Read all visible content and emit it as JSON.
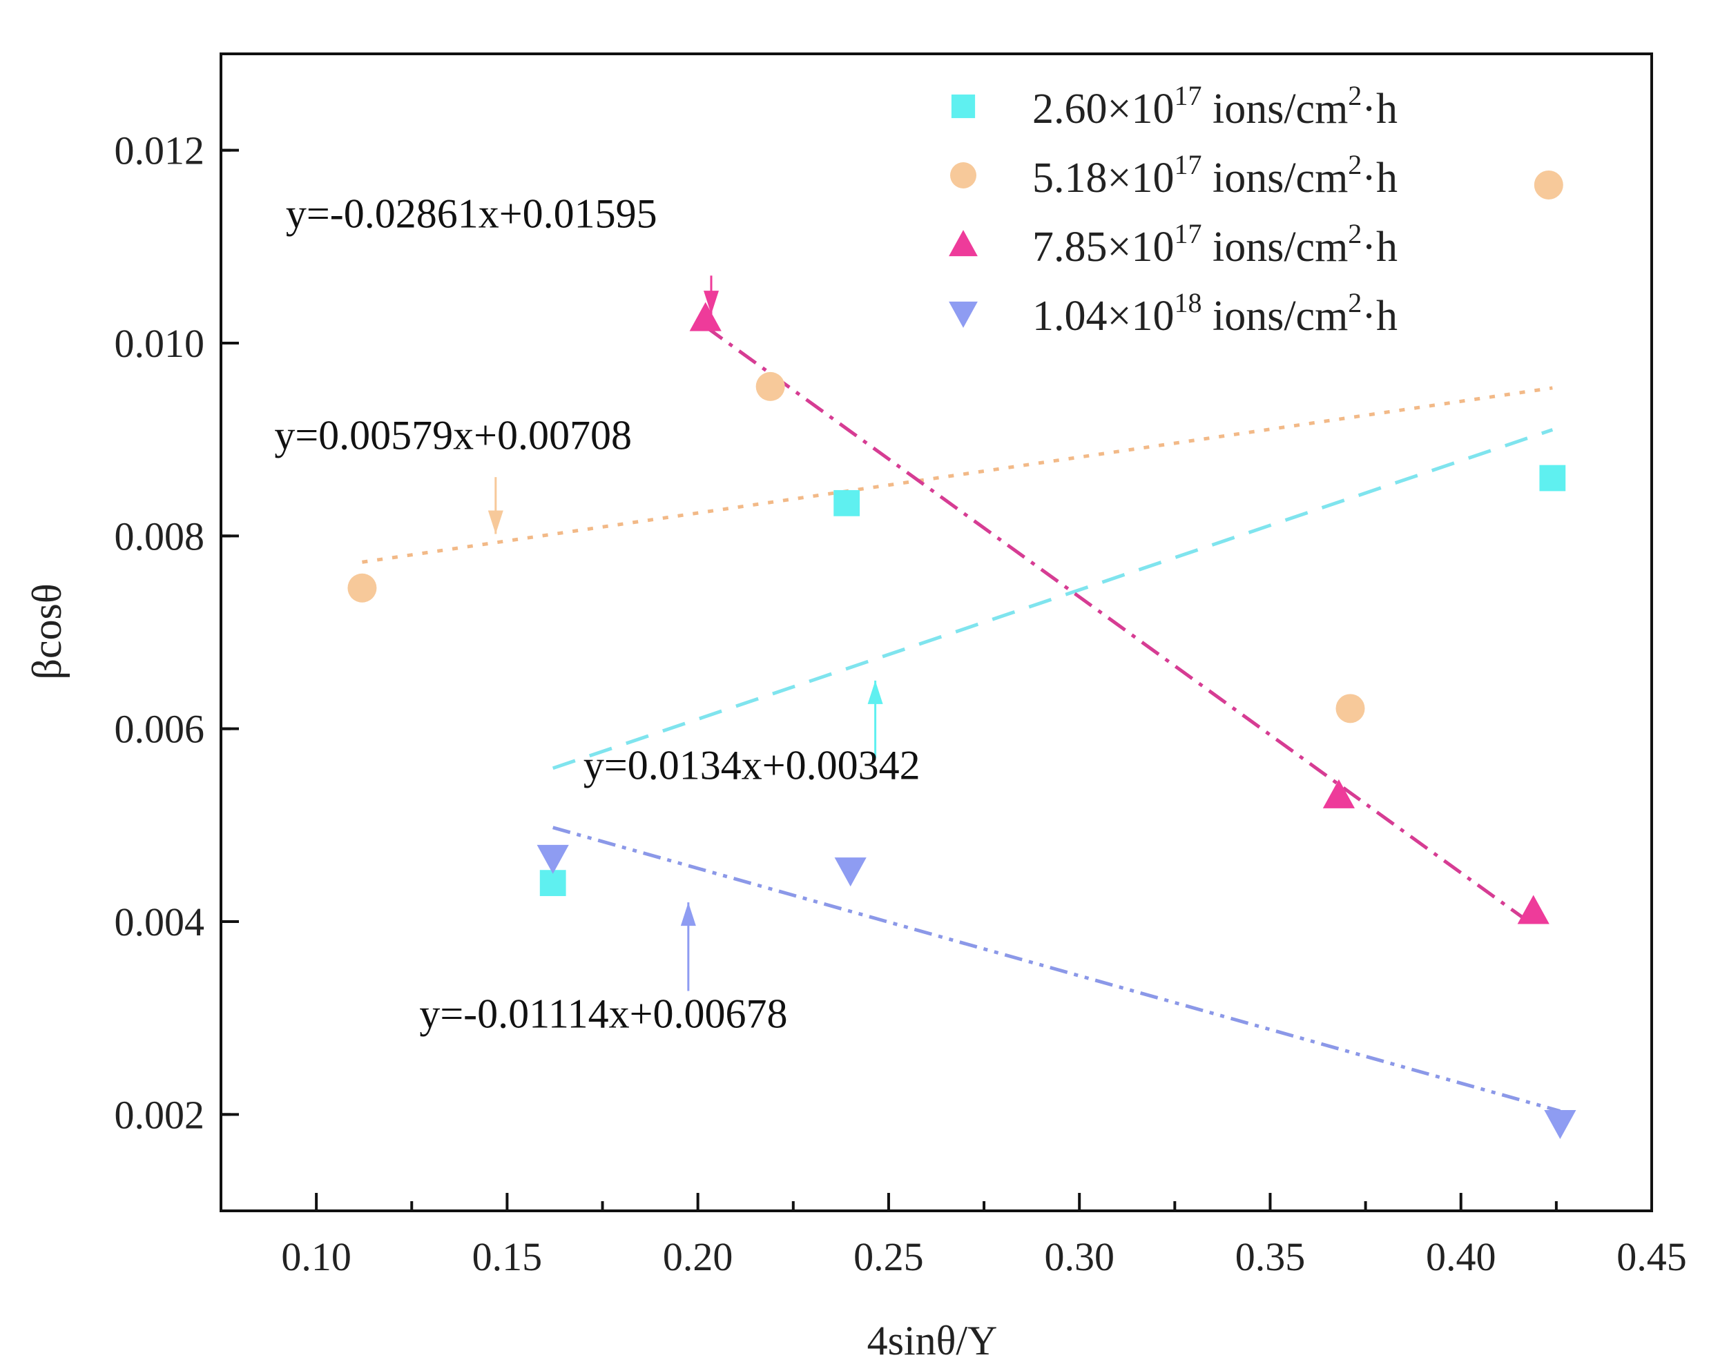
{
  "chart_data": {
    "type": "scatter",
    "xlabel": "4sinθ/Y",
    "ylabel": "βcosθ",
    "xlim": [
      0.075,
      0.45
    ],
    "ylim": [
      0.001,
      0.013
    ],
    "x_ticks": [
      0.1,
      0.15,
      0.2,
      0.25,
      0.3,
      0.35,
      0.4,
      0.45
    ],
    "x_tick_labels": [
      "0.10",
      "0.15",
      "0.20",
      "0.25",
      "0.30",
      "0.35",
      "0.40",
      "0.45"
    ],
    "y_ticks": [
      0.002,
      0.004,
      0.006,
      0.008,
      0.01,
      0.012
    ],
    "y_tick_labels": [
      "0.002",
      "0.004",
      "0.006",
      "0.008",
      "0.010",
      "0.012"
    ],
    "legend_position": "top-right",
    "series": [
      {
        "name_parts": [
          "2.60×10",
          "17",
          " ions/cm",
          "2",
          "·h"
        ],
        "marker": "square",
        "color": "#5ff0f0",
        "line_color": "#7fe4ee",
        "line_style": "dash",
        "x": [
          0.162,
          0.239,
          0.424
        ],
        "y": [
          0.0044,
          0.00834,
          0.0086
        ],
        "fit": {
          "slope": 0.0134,
          "intercept": 0.00342,
          "x_range": [
            0.162,
            0.424
          ]
        }
      },
      {
        "name_parts": [
          "5.18×10",
          "17",
          " ions/cm",
          "2",
          "·h"
        ],
        "marker": "circle",
        "color": "#f7c99a",
        "line_color": "#f2b987",
        "line_style": "dot",
        "x": [
          0.112,
          0.219,
          0.371,
          0.423
        ],
        "y": [
          0.00746,
          0.00955,
          0.00621,
          0.01164
        ],
        "fit": {
          "slope": 0.00579,
          "intercept": 0.00708,
          "x_range": [
            0.112,
            0.424
          ]
        }
      },
      {
        "name_parts": [
          "7.85×10",
          "17",
          " ions/cm",
          "2",
          "·h"
        ],
        "marker": "triangle-up",
        "color": "#ee3b9a",
        "line_color": "#d63c93",
        "line_style": "dashdot",
        "x": [
          0.202,
          0.368,
          0.419
        ],
        "y": [
          0.01026,
          0.00531,
          0.00411
        ],
        "fit": {
          "slope": -0.02861,
          "intercept": 0.01595,
          "x_range": [
            0.202,
            0.419
          ]
        }
      },
      {
        "name_parts": [
          "1.04×10",
          "18",
          " ions/cm",
          "2",
          "·h"
        ],
        "marker": "triangle-down",
        "color": "#8e9cf2",
        "line_color": "#8b98e8",
        "line_style": "dashdotdot",
        "x": [
          0.162,
          0.24,
          0.426
        ],
        "y": [
          0.00466,
          0.00453,
          0.00191
        ],
        "fit": {
          "slope": -0.01114,
          "intercept": 0.00678,
          "x_range": [
            0.162,
            0.426
          ]
        }
      }
    ],
    "annotations": [
      {
        "text": "y=-0.02861x+0.01595",
        "series": 2,
        "text_at": [
          0.092,
          0.0112
        ],
        "arrow_from": [
          0.2035,
          0.0107
        ],
        "arrow_to": [
          0.2035,
          0.0103
        ]
      },
      {
        "text": "y=0.00579x+0.00708",
        "series": 1,
        "text_at": [
          0.089,
          0.0089
        ],
        "arrow_from": [
          0.147,
          0.00861
        ],
        "arrow_to": [
          0.147,
          0.00802
        ]
      },
      {
        "text": "y=0.0134x+0.00342",
        "series": 0,
        "text_at": [
          0.17,
          0.00548
        ],
        "arrow_from": [
          0.2465,
          0.0057
        ],
        "arrow_to": [
          0.2465,
          0.0065
        ]
      },
      {
        "text": "y=-0.01114x+0.00678",
        "series": 3,
        "text_at": [
          0.127,
          0.0029
        ],
        "arrow_from": [
          0.1975,
          0.00328
        ],
        "arrow_to": [
          0.1975,
          0.0042
        ]
      }
    ]
  }
}
